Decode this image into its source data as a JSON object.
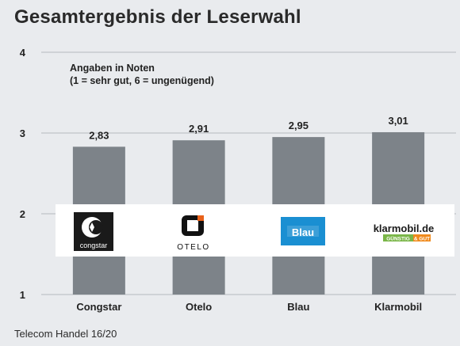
{
  "title": "Gesamtergebnis der Leserwahl",
  "source": "Telecom Handel 16/20",
  "note": {
    "line1": "Angaben in Noten",
    "line2": "(1 = sehr gut, 6 = ungenügend)"
  },
  "colors": {
    "background": "#e9ebee",
    "bar": "#7d8389",
    "grid": "#b5b9be",
    "logo_band": "#ffffff",
    "blau_brand": "#1a8fd2",
    "klarmobil_green": "#7ab648",
    "klarmobil_orange": "#f08a1c"
  },
  "logos": [
    {
      "brand": "congstar",
      "icon": "congstar-logo",
      "text": "congstar"
    },
    {
      "brand": "otelo",
      "icon": "otelo-logo",
      "text": "OTELO"
    },
    {
      "brand": "blau",
      "icon": "blau-logo",
      "text": "Blau"
    },
    {
      "brand": "klarmobil",
      "icon": "klarmobil-logo",
      "text": "klarmobil.de",
      "badge_left": "GÜNSTIG",
      "badge_right": "& GUT"
    }
  ],
  "chart_data": {
    "type": "bar",
    "title": "Gesamtergebnis der Leserwahl",
    "categories": [
      "Congstar",
      "Otelo",
      "Blau",
      "Klarmobil"
    ],
    "values": [
      2.83,
      2.91,
      2.95,
      3.01
    ],
    "value_labels": [
      "2,83",
      "2,91",
      "2,95",
      "3,01"
    ],
    "yticks": [
      1,
      2,
      3,
      4
    ],
    "ylim": [
      1,
      4
    ],
    "grid": true,
    "legend": "none"
  }
}
